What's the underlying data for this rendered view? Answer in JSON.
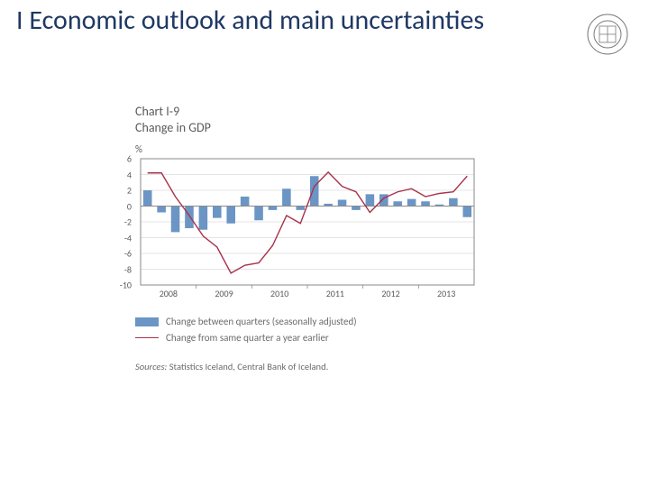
{
  "title": "I Economic outlook and main uncertainties",
  "chart": {
    "label": "Chart I-9",
    "subtitle": "Change in GDP",
    "y_axis_label": "%",
    "type": "bar+line",
    "ylim": [
      -10,
      6
    ],
    "ytick_step": 2,
    "yticks": [
      6,
      4,
      2,
      0,
      -2,
      -4,
      -6,
      -8,
      -10
    ],
    "x_years": [
      "2008",
      "2009",
      "2010",
      "2011",
      "2012",
      "2013"
    ],
    "n_bars": 24,
    "bar_values": [
      2.0,
      -0.8,
      -3.3,
      -2.8,
      -3.0,
      -1.5,
      -2.2,
      1.2,
      -1.8,
      -0.5,
      2.2,
      -0.5,
      3.8,
      0.3,
      0.8,
      -0.5,
      1.5,
      1.5,
      0.6,
      0.9,
      0.6,
      0.2,
      1.0,
      -1.4
    ],
    "line_values": [
      4.2,
      4.2,
      1.2,
      -1.2,
      -3.8,
      -5.2,
      -8.5,
      -7.5,
      -7.2,
      -5.0,
      -1.2,
      -2.2,
      2.5,
      4.3,
      2.5,
      1.8,
      -0.8,
      1.0,
      1.8,
      2.2,
      1.2,
      1.6,
      1.8,
      3.8
    ],
    "bar_color": "#6b95c4",
    "line_color": "#a8324a",
    "background_color": "#ffffff",
    "axis_color": "#8a8a8a",
    "grid_color": "#c9c9c9",
    "tick_fontsize": 10,
    "tick_color": "#5a5a5a",
    "bar_width_ratio": 0.62,
    "line_width": 1.4
  },
  "legend": {
    "bar": "Change between quarters (seasonally adjusted)",
    "line": "Change from same quarter a year earlier"
  },
  "sources_lead": "Sources:",
  "sources": "Statistics Iceland, Central Bank of Iceland.",
  "logo": {
    "name": "seal-logo",
    "stroke": "#7a7a7a"
  }
}
